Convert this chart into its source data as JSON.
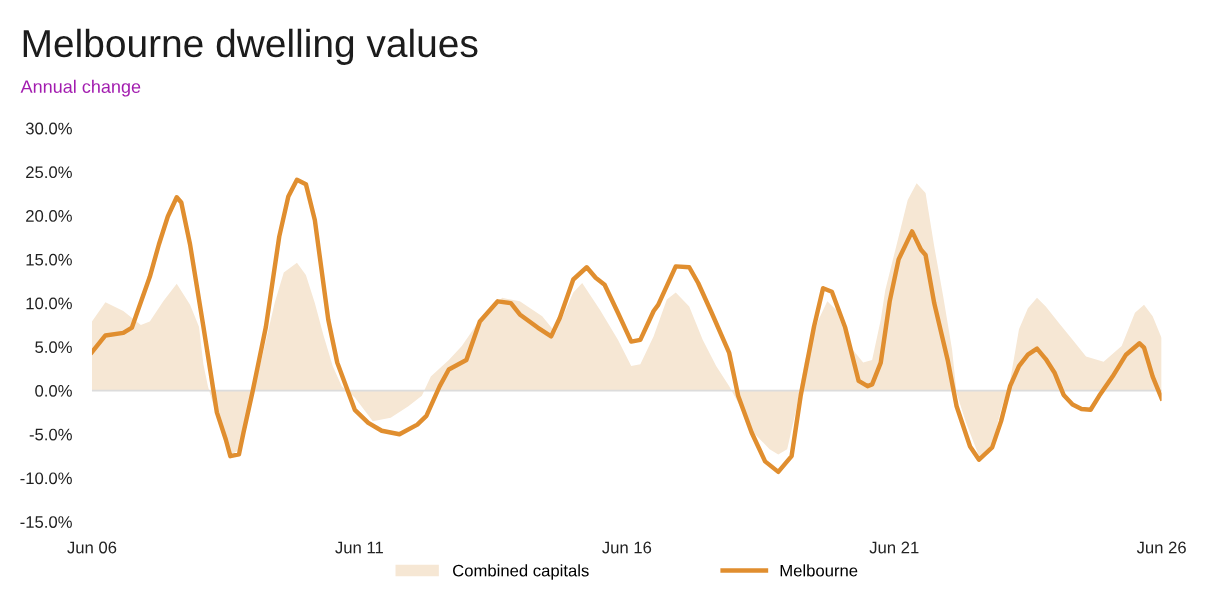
{
  "chart_data": {
    "type": "line",
    "title": "Melbourne dwelling values",
    "subtitle": "Annual change",
    "series": [
      {
        "name": "Combined capitals",
        "type": "area",
        "color": "#f6e7d4",
        "x": [
          "2006-06",
          "2006-09",
          "2007-01",
          "2007-05",
          "2007-07",
          "2007-10",
          "2008-01",
          "2008-04",
          "2008-06",
          "2008-07",
          "2008-08",
          "2008-10",
          "2008-12",
          "2009-01",
          "2009-03",
          "2009-05",
          "2009-06",
          "2009-08",
          "2009-11",
          "2010-01",
          "2010-04",
          "2010-06",
          "2010-08",
          "2010-10",
          "2010-12",
          "2011-02",
          "2011-05",
          "2011-09",
          "2012-01",
          "2012-05",
          "2012-08",
          "2012-10",
          "2013-02",
          "2013-05",
          "2013-09",
          "2014-02",
          "2014-06",
          "2014-11",
          "2015-02",
          "2015-06",
          "2015-08",
          "2015-12",
          "2016-04",
          "2016-07",
          "2016-09",
          "2016-12",
          "2017-03",
          "2017-05",
          "2017-08",
          "2017-11",
          "2018-02",
          "2018-05",
          "2018-07",
          "2018-10",
          "2019-02",
          "2019-04",
          "2019-06",
          "2019-08",
          "2019-10",
          "2020-01",
          "2020-03",
          "2020-05",
          "2020-08",
          "2020-11",
          "2021-01",
          "2021-03",
          "2021-04",
          "2021-07",
          "2021-09",
          "2021-11",
          "2022-01",
          "2022-03",
          "2022-05",
          "2022-07",
          "2022-08",
          "2022-10",
          "2023-01",
          "2023-04",
          "2023-06",
          "2023-08",
          "2023-10",
          "2023-12",
          "2024-02",
          "2024-04",
          "2024-07",
          "2024-10",
          "2025-01",
          "2025-05",
          "2025-09",
          "2025-12",
          "2026-02",
          "2026-04",
          "2026-06"
        ],
        "values": [
          7.9,
          10.1,
          9.1,
          7.5,
          7.9,
          10.2,
          12.2,
          9.8,
          7.3,
          3.0,
          0.5,
          -3.0,
          -6.0,
          -7.4,
          -6.8,
          -3.0,
          -0.5,
          3.5,
          10.1,
          13.5,
          14.6,
          13.2,
          10.0,
          6.2,
          2.8,
          0.5,
          -0.8,
          -3.5,
          -3.1,
          -1.8,
          -0.6,
          1.6,
          3.5,
          5.1,
          8.1,
          10.6,
          10.2,
          8.5,
          6.6,
          11.2,
          12.3,
          9.2,
          5.8,
          2.8,
          3.0,
          6.2,
          10.4,
          11.2,
          9.6,
          5.8,
          2.8,
          0.5,
          -1.4,
          -4.6,
          -6.7,
          -7.3,
          -6.7,
          -2.2,
          3.5,
          8.1,
          10.2,
          9.2,
          5.1,
          3.2,
          3.5,
          8.1,
          11.5,
          17.6,
          21.8,
          23.7,
          22.6,
          16.5,
          10.8,
          4.7,
          -0.3,
          -3.5,
          -7.5,
          -6.2,
          -2.2,
          1.1,
          7.0,
          9.4,
          10.6,
          9.6,
          7.7,
          5.8,
          3.9,
          3.3,
          5.1,
          8.9,
          9.8,
          8.5,
          6.0
        ]
      },
      {
        "name": "Melbourne",
        "color": "#e08e2f",
        "x": [
          "2006-06",
          "2006-09",
          "2007-01",
          "2007-03",
          "2007-04",
          "2007-07",
          "2007-09",
          "2007-11",
          "2008-01",
          "2008-02",
          "2008-04",
          "2008-07",
          "2008-10",
          "2008-12",
          "2009-01",
          "2009-03",
          "2009-04",
          "2009-06",
          "2009-09",
          "2009-12",
          "2010-02",
          "2010-04",
          "2010-06",
          "2010-08",
          "2010-11",
          "2011-01",
          "2011-05",
          "2011-08",
          "2011-11",
          "2012-03",
          "2012-07",
          "2012-09",
          "2012-12",
          "2013-02",
          "2013-06",
          "2013-09",
          "2014-01",
          "2014-04",
          "2014-06",
          "2014-10",
          "2015-01",
          "2015-03",
          "2015-06",
          "2015-09",
          "2015-11",
          "2016-01",
          "2016-04",
          "2016-07",
          "2016-09",
          "2016-12",
          "2017-01",
          "2017-05",
          "2017-08",
          "2017-10",
          "2018-01",
          "2018-05",
          "2018-07",
          "2018-10",
          "2019-01",
          "2019-04",
          "2019-07",
          "2019-09",
          "2019-12",
          "2020-02",
          "2020-04",
          "2020-07",
          "2020-10",
          "2020-12",
          "2021-01",
          "2021-03",
          "2021-05",
          "2021-07",
          "2021-10",
          "2021-12",
          "2022-01",
          "2022-03",
          "2022-06",
          "2022-08",
          "2022-11",
          "2023-01",
          "2023-04",
          "2023-06",
          "2023-08",
          "2023-10",
          "2023-12",
          "2024-02",
          "2024-04",
          "2024-06",
          "2024-08",
          "2024-10",
          "2024-12",
          "2025-02",
          "2025-04",
          "2025-07",
          "2025-10",
          "2026-01",
          "2026-02",
          "2026-04",
          "2026-06"
        ],
        "values": [
          4.4,
          6.3,
          6.6,
          7.2,
          8.7,
          13.0,
          16.7,
          19.9,
          22.1,
          21.5,
          16.7,
          7.3,
          -2.5,
          -5.6,
          -7.5,
          -7.3,
          -4.8,
          -0.2,
          7.3,
          17.6,
          22.2,
          24.1,
          23.6,
          19.5,
          8.1,
          3.2,
          -2.2,
          -3.7,
          -4.6,
          -5.0,
          -3.9,
          -2.9,
          0.5,
          2.4,
          3.5,
          7.9,
          10.2,
          10.0,
          8.7,
          7.2,
          6.2,
          8.3,
          12.7,
          14.1,
          12.9,
          12.1,
          8.9,
          5.6,
          5.8,
          9.1,
          9.8,
          14.2,
          14.1,
          12.3,
          8.9,
          4.3,
          -0.6,
          -4.8,
          -8.1,
          -9.3,
          -7.5,
          -0.6,
          7.3,
          11.7,
          11.3,
          7.2,
          1.1,
          0.5,
          0.7,
          3.2,
          10.2,
          15.0,
          18.2,
          16.1,
          15.5,
          10.0,
          3.5,
          -1.8,
          -6.4,
          -7.9,
          -6.5,
          -3.5,
          0.5,
          2.8,
          4.1,
          4.8,
          3.6,
          2.0,
          -0.5,
          -1.6,
          -2.1,
          -2.2,
          -0.6,
          1.6,
          4.1,
          5.4,
          4.9,
          1.6,
          -0.9
        ]
      }
    ],
    "xlim": [
      "2006-06",
      "2026-06"
    ],
    "xticks": [
      {
        "value": "2006-06",
        "label": "Jun 06"
      },
      {
        "value": "2011-06",
        "label": "Jun 11"
      },
      {
        "value": "2016-06",
        "label": "Jun 16"
      },
      {
        "value": "2021-06",
        "label": "Jun 21"
      },
      {
        "value": "2026-06",
        "label": "Jun 26"
      }
    ],
    "ylim": [
      -15,
      30
    ],
    "yticks": [
      {
        "value": -15,
        "label": "-15.0%"
      },
      {
        "value": -10,
        "label": "-10.0%"
      },
      {
        "value": -5,
        "label": "-5.0%"
      },
      {
        "value": 0,
        "label": "0.0%"
      },
      {
        "value": 5,
        "label": "5.0%"
      },
      {
        "value": 10,
        "label": "10.0%"
      },
      {
        "value": 15,
        "label": "15.0%"
      },
      {
        "value": 20,
        "label": "20.0%"
      },
      {
        "value": 25,
        "label": "25.0%"
      },
      {
        "value": 30,
        "label": "30.0%"
      }
    ],
    "ref_lines": [
      {
        "axis": "y",
        "value": 0,
        "color": "#dcdcdc"
      }
    ],
    "grid": false,
    "legend": "bottom",
    "line_style": "solid"
  }
}
